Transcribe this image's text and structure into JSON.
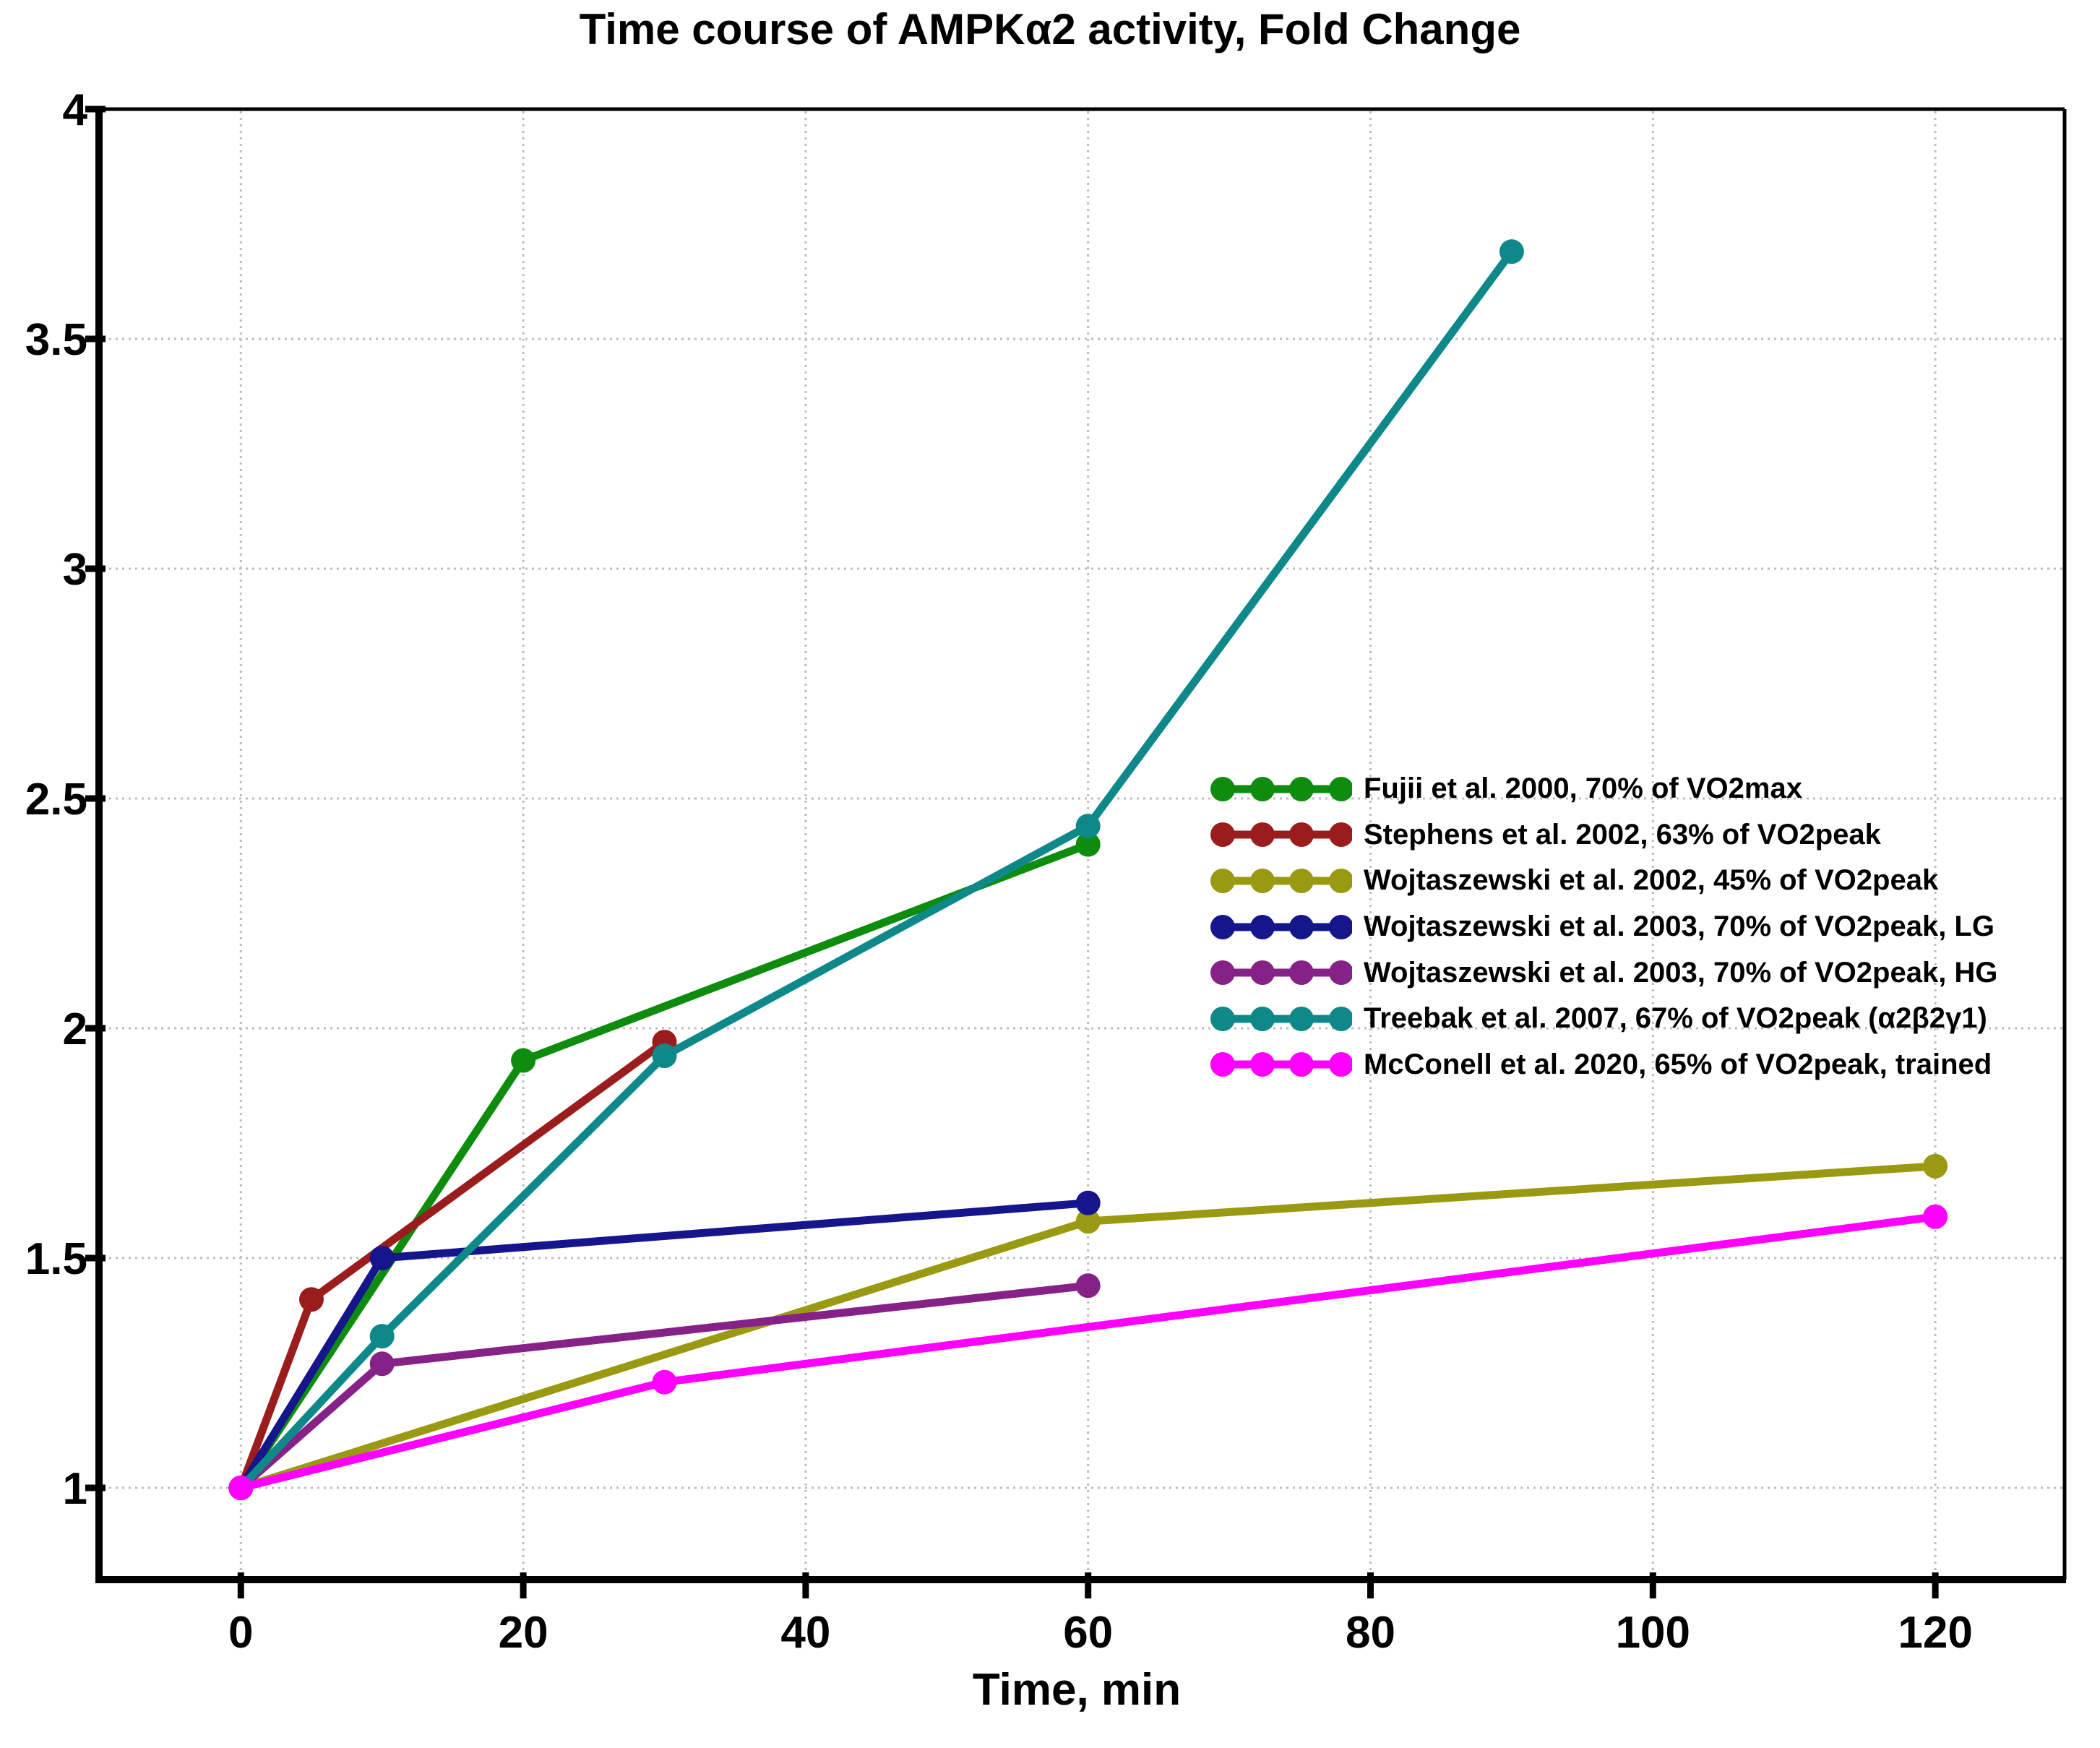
{
  "title": "Time course of AMPKα2 activity, Fold Change",
  "x_axis": {
    "label": "Time, min",
    "tick_labels": [
      "0",
      "20",
      "40",
      "60",
      "80",
      "100",
      "120"
    ]
  },
  "y_axis": {
    "label": "",
    "tick_labels": [
      "1",
      "1.5",
      "2",
      "2.5",
      "3",
      "3.5",
      "4"
    ]
  },
  "chart_data": {
    "type": "line",
    "title": "Time course of AMPKα2 activity, Fold Change",
    "xlabel": "Time, min",
    "ylabel": "",
    "xlim": [
      -10,
      129
    ],
    "ylim": [
      0.8,
      4.0
    ],
    "x_ticks": [
      0,
      20,
      40,
      60,
      80,
      100,
      120
    ],
    "y_ticks": [
      1,
      1.5,
      2,
      2.5,
      3,
      3.5,
      4
    ],
    "grid": true,
    "gridline_color": "#bdbdbd",
    "legend_position": "middle-right",
    "series": [
      {
        "name": "Fujii et al. 2000, 70% of VO2max",
        "color": "#0e8c0e",
        "x": [
          0,
          20,
          60
        ],
        "y": [
          1.0,
          1.93,
          2.4
        ]
      },
      {
        "name": "Stephens et al. 2002, 63% of VO2peak",
        "color": "#9b1c1c",
        "x": [
          0,
          5,
          30
        ],
        "y": [
          1.0,
          1.41,
          1.97
        ]
      },
      {
        "name": "Wojtaszewski et al. 2002, 45% of VO2peak",
        "color": "#999912",
        "x": [
          0,
          60,
          120
        ],
        "y": [
          1.0,
          1.58,
          1.7
        ]
      },
      {
        "name": "Wojtaszewski et al. 2003, 70% of VO2peak, LG",
        "color": "#15158c",
        "x": [
          0,
          10,
          60
        ],
        "y": [
          1.0,
          1.5,
          1.62
        ]
      },
      {
        "name": "Wojtaszewski et al. 2003, 70% of VO2peak, HG",
        "color": "#862187",
        "x": [
          0,
          10,
          60
        ],
        "y": [
          1.0,
          1.27,
          1.44
        ]
      },
      {
        "name": "Treebak et al. 2007, 67% of VO2peak (α2β2γ1)",
        "color": "#0e8888",
        "x": [
          0,
          10,
          30,
          60,
          90
        ],
        "y": [
          1.0,
          1.33,
          1.94,
          2.44,
          3.69
        ]
      },
      {
        "name": "McConell et al. 2020, 65% of VO2peak, trained",
        "color": "#ff00ff",
        "x": [
          0,
          30,
          120
        ],
        "y": [
          1.0,
          1.23,
          1.59
        ]
      }
    ]
  }
}
